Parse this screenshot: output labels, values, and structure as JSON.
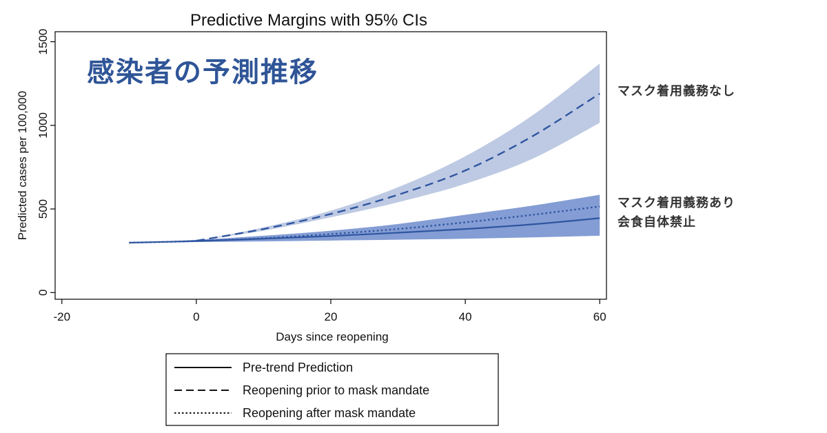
{
  "overlay_title": "感染者の予測推移",
  "annotations": {
    "upper": "マスク着用義務なし",
    "lower_line1": "マスク着用義務あり",
    "lower_line2": "会食自体禁止"
  },
  "colors": {
    "line": "#2f55a0",
    "band_upper": "#b7c4e0",
    "band_lower": "#6f8ccc"
  },
  "chart_data": {
    "type": "line",
    "title": "Predictive Margins with 95% CIs",
    "xlabel": "Days since reopening",
    "ylabel": "Predicted cases per 100,000",
    "xlim": [
      -21,
      61
    ],
    "ylim": [
      -40,
      1560
    ],
    "xticks": [
      -20,
      0,
      20,
      40,
      60
    ],
    "yticks": [
      0,
      500,
      1000,
      1500
    ],
    "grid": false,
    "legend_position": "bottom",
    "series": [
      {
        "name": "Pre-trend Prediction",
        "style": "solid",
        "x": [
          -10,
          0,
          10,
          20,
          30,
          40,
          50,
          60
        ],
        "y": [
          298,
          308,
          322,
          338,
          358,
          380,
          408,
          445
        ],
        "ci_low": [
          298,
          302,
          306,
          311,
          316,
          322,
          330,
          340
        ],
        "ci_high": [
          298,
          315,
          340,
          370,
          410,
          465,
          520,
          585
        ]
      },
      {
        "name": "Reopening prior to mask mandate",
        "style": "dashed",
        "x": [
          0,
          10,
          20,
          30,
          40,
          50,
          60
        ],
        "y": [
          310,
          380,
          470,
          585,
          730,
          935,
          1190
        ],
        "ci_low": [
          310,
          370,
          450,
          540,
          650,
          800,
          1015
        ],
        "ci_high": [
          310,
          390,
          490,
          630,
          815,
          1060,
          1370
        ]
      },
      {
        "name": "Reopening after mask mandate",
        "style": "dotted",
        "x": [
          -10,
          0,
          10,
          20,
          30,
          40,
          50,
          60
        ],
        "y": [
          298,
          308,
          325,
          350,
          380,
          420,
          465,
          515
        ]
      }
    ]
  }
}
